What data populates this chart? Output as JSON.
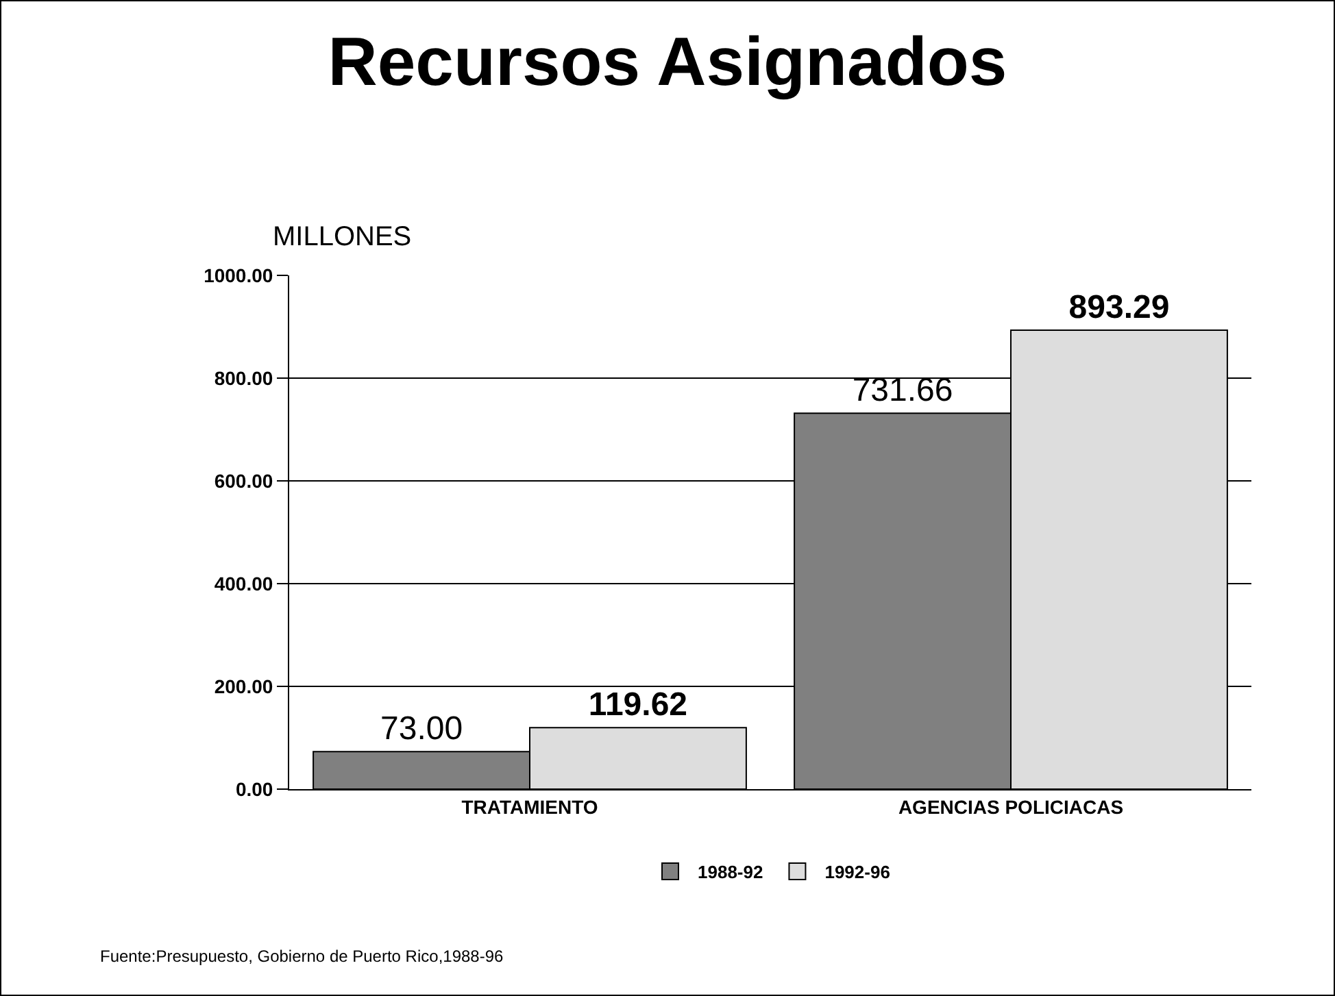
{
  "chart_data": {
    "type": "bar",
    "title": "Recursos Asignados",
    "ylabel": "MILLONES",
    "categories": [
      "TRATAMIENTO",
      "AGENCIAS POLICIACAS"
    ],
    "series": [
      {
        "name": "1988-92",
        "color": "#808080",
        "values": [
          73.0,
          731.66
        ],
        "value_labels": [
          "73.00",
          "731.66"
        ]
      },
      {
        "name": "1992-96",
        "color": "#dddddd",
        "values": [
          119.62,
          893.29
        ],
        "value_labels": [
          "119.62",
          "893.29"
        ]
      }
    ],
    "ylim": [
      0,
      1000
    ],
    "yticks": [
      {
        "value": 0,
        "label": "0.00"
      },
      {
        "value": 200,
        "label": "200.00"
      },
      {
        "value": 400,
        "label": "400.00"
      },
      {
        "value": 600,
        "label": "600.00"
      },
      {
        "value": 800,
        "label": "800.00"
      },
      {
        "value": 1000,
        "label": "1000.00"
      }
    ],
    "grid": "y",
    "legend": "bottom",
    "annotations": [
      "Fuente:Presupuesto, Gobierno de Puerto Rico,1988-96"
    ]
  }
}
